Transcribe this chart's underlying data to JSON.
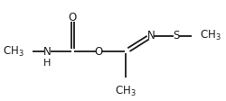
{
  "bg_color": "#ffffff",
  "line_color": "#1a1a1a",
  "lw": 1.3,
  "fs": 8.5,
  "figsize": [
    2.5,
    1.12
  ],
  "dpi": 100,
  "xlim": [
    0,
    10
  ],
  "ylim": [
    0,
    4.5
  ],
  "x_ch3l": 0.55,
  "x_N": 1.65,
  "x_Ccarb": 2.85,
  "x_Obr": 4.05,
  "x_Cim": 5.35,
  "x_Nim": 6.55,
  "x_S": 7.75,
  "x_ch3r": 8.85,
  "y_main": 2.1,
  "y_O_top": 3.7,
  "y_CH3b": 0.55,
  "y_NS": 2.1
}
